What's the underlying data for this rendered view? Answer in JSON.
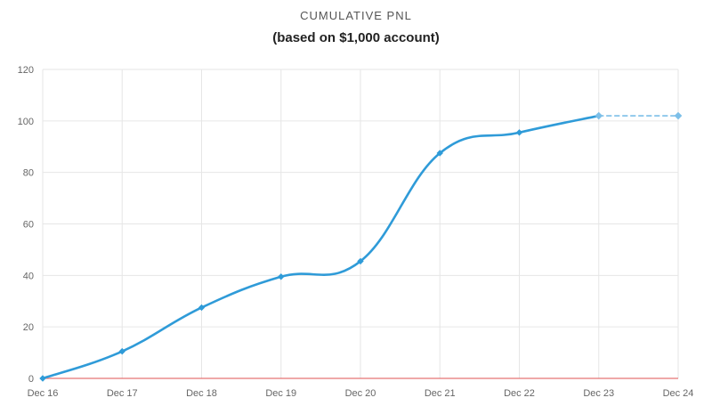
{
  "chart_data": {
    "type": "line",
    "title": "CUMULATIVE PNL",
    "subtitle": "(based on $1,000 account)",
    "xlabel": "",
    "ylabel": "",
    "x": [
      "Dec 16",
      "Dec 17",
      "Dec 18",
      "Dec 19",
      "Dec 20",
      "Dec 21",
      "Dec 22",
      "Dec 23",
      "Dec 24"
    ],
    "series": [
      {
        "values": [
          0,
          10.5,
          27.5,
          39.5,
          45.5,
          87.5,
          95.5,
          102,
          null
        ],
        "color": "#2f9bd8"
      },
      {
        "values": [
          null,
          null,
          null,
          null,
          null,
          null,
          null,
          102,
          102
        ],
        "color": "#7cbfe8"
      }
    ],
    "ylim": [
      0,
      120
    ],
    "yticks": [
      0,
      20,
      40,
      60,
      80,
      100,
      120
    ],
    "grid": true,
    "zero_line_color": "#e57373",
    "legend": "none"
  }
}
